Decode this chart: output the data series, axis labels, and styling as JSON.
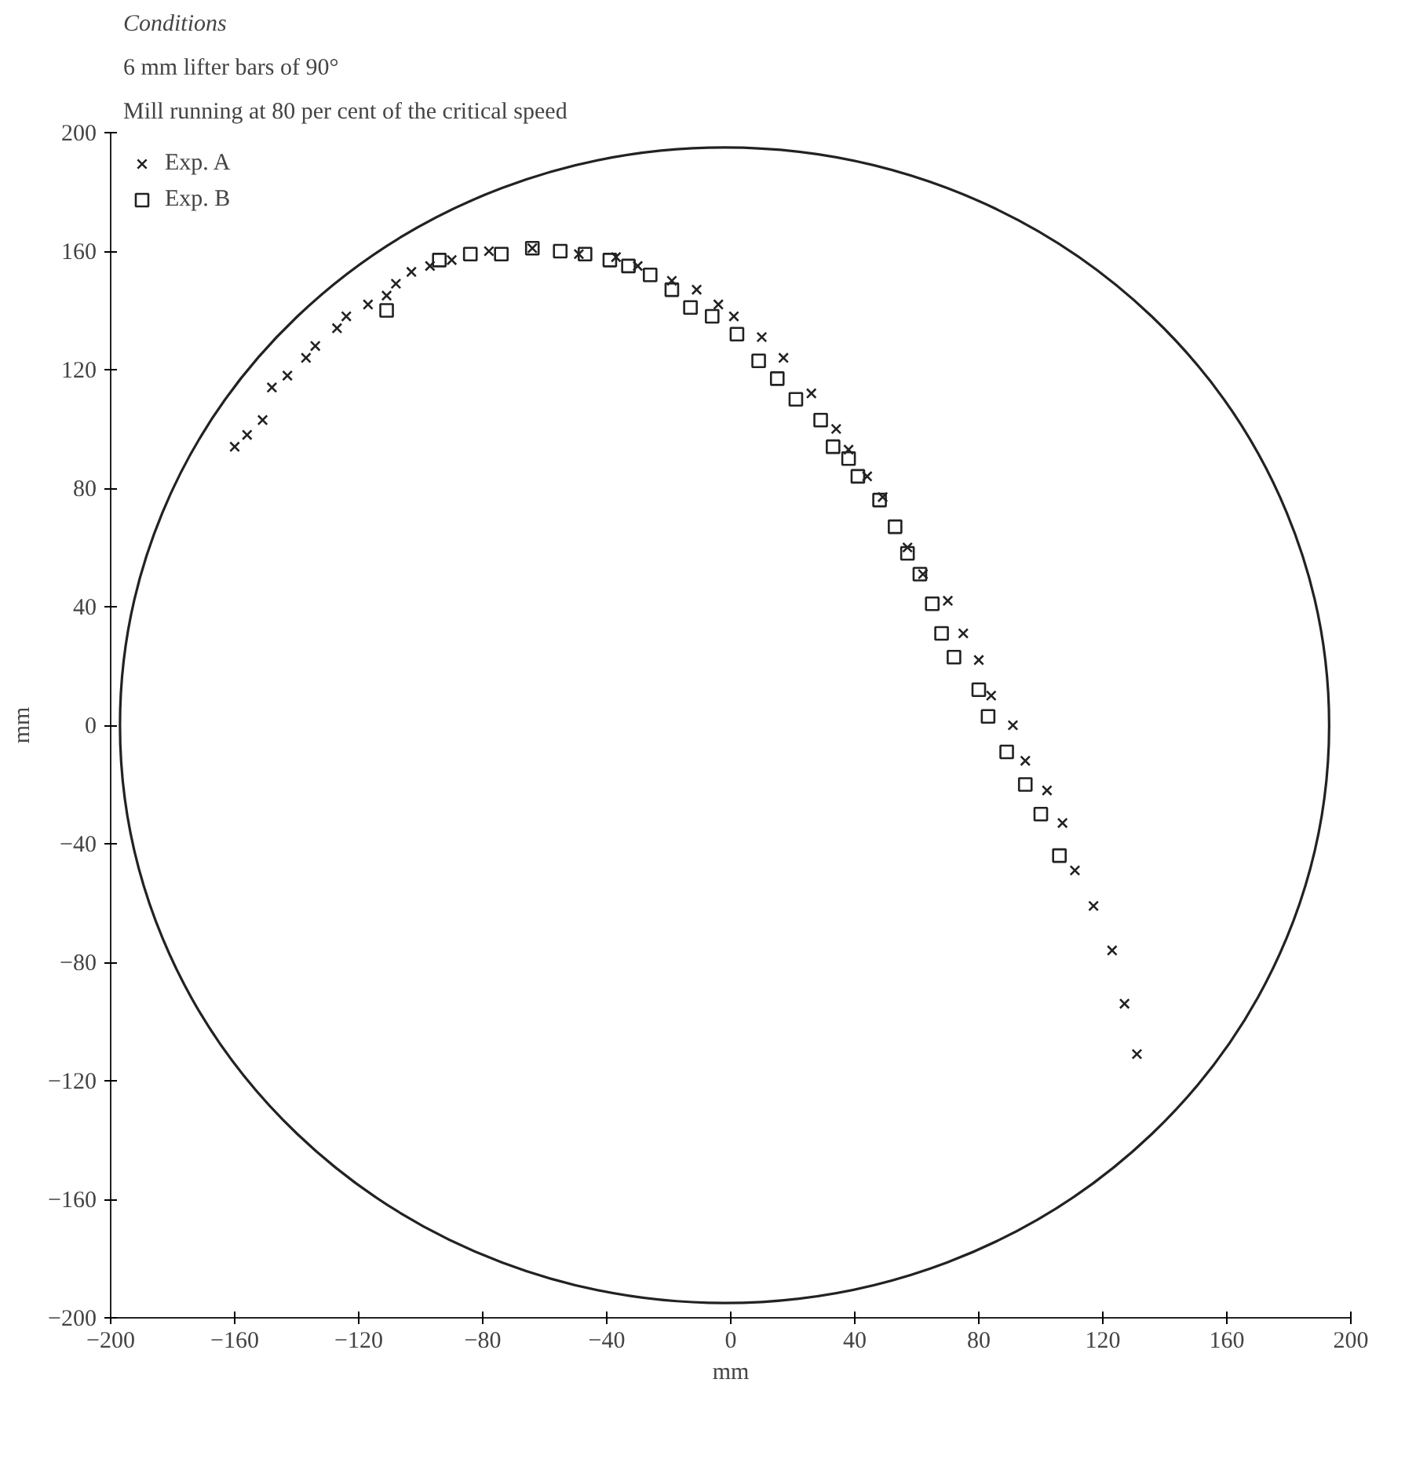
{
  "chart_data": {
    "type": "scatter",
    "title": "Conditions",
    "subtitle": "6 mm lifter bars of 90°",
    "annotations": [
      "Mill running at 80 per cent of the critical speed"
    ],
    "xlabel": "mm",
    "ylabel": "mm",
    "xlim": [
      -200,
      200
    ],
    "ylim": [
      -200,
      200
    ],
    "xticks": [
      {
        "value": -200,
        "label": "−200"
      },
      {
        "value": -160,
        "label": "−160"
      },
      {
        "value": -120,
        "label": "−120"
      },
      {
        "value": -80,
        "label": "−80"
      },
      {
        "value": -40,
        "label": "−40"
      },
      0,
      40,
      80,
      120,
      160,
      200
    ],
    "yticks": [
      {
        "value": -200,
        "label": "−200"
      },
      {
        "value": -160,
        "label": "−160"
      },
      {
        "value": -120,
        "label": "−120"
      },
      {
        "value": -80,
        "label": "−80"
      },
      {
        "value": -40,
        "label": "−40"
      },
      0,
      40,
      80,
      120,
      160,
      200
    ],
    "grid": false,
    "legend": "top left",
    "series": [
      {
        "name": "Exp. A",
        "color": "#222222",
        "marker": "cross",
        "x": [
          -160,
          -156,
          -151,
          -148,
          -143,
          -137,
          -134,
          -127,
          -124,
          -117,
          -111,
          -108,
          -103,
          -97,
          -90,
          -78,
          -64,
          -49,
          -37,
          -30,
          -19,
          -11,
          -4,
          1,
          10,
          17,
          26,
          34,
          38,
          44,
          49,
          57,
          62,
          70,
          75,
          80,
          84,
          91,
          95,
          102,
          107,
          111,
          117,
          123,
          127,
          131
        ],
        "values": [
          94,
          98,
          103,
          114,
          118,
          124,
          128,
          134,
          138,
          142,
          145,
          149,
          153,
          155,
          157,
          160,
          161,
          159,
          158,
          155,
          150,
          147,
          142,
          138,
          131,
          124,
          112,
          100,
          93,
          84,
          77,
          60,
          51,
          42,
          31,
          22,
          10,
          0,
          -12,
          -22,
          -33,
          -49,
          -61,
          -76,
          -94,
          -111
        ]
      },
      {
        "name": "Exp. B",
        "color": "#222222",
        "marker": "square",
        "x": [
          -111,
          -94,
          -84,
          -74,
          -64,
          -55,
          -47,
          -39,
          -33,
          -26,
          -19,
          -13,
          -6,
          2,
          9,
          15,
          21,
          29,
          33,
          38,
          41,
          48,
          53,
          57,
          61,
          65,
          68,
          72,
          80,
          83,
          89,
          95,
          100,
          106
        ],
        "values": [
          140,
          157,
          159,
          159,
          161,
          160,
          159,
          157,
          155,
          152,
          147,
          141,
          138,
          132,
          123,
          117,
          110,
          103,
          94,
          90,
          84,
          76,
          67,
          58,
          51,
          41,
          31,
          23,
          12,
          3,
          -9,
          -20,
          -30,
          -44
        ]
      }
    ]
  }
}
